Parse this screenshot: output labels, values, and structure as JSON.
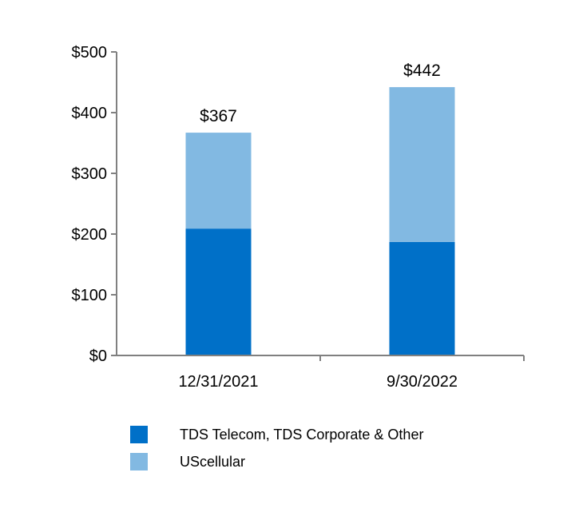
{
  "chart_data": {
    "type": "bar",
    "stacked": true,
    "categories": [
      "12/31/2021",
      "9/30/2022"
    ],
    "series": [
      {
        "name": "TDS Telecom, TDS Corporate & Other",
        "values": [
          209,
          187
        ],
        "color": "#0070C8"
      },
      {
        "name": "UScellular",
        "values": [
          158,
          255
        ],
        "color": "#82B9E2"
      }
    ],
    "totals": [
      367,
      442
    ],
    "total_labels": [
      "$367",
      "$442"
    ],
    "ylim": [
      0,
      500
    ],
    "yticks": [
      0,
      100,
      200,
      300,
      400,
      500
    ],
    "ytick_labels": [
      "$0",
      "$100",
      "$200",
      "$300",
      "$400",
      "$500"
    ],
    "grid": false,
    "legend_position": "bottom-left"
  },
  "legend": {
    "items": [
      {
        "label": "TDS Telecom, TDS Corporate & Other",
        "color": "#0070C8"
      },
      {
        "label": "UScellular",
        "color": "#82B9E2"
      }
    ]
  }
}
